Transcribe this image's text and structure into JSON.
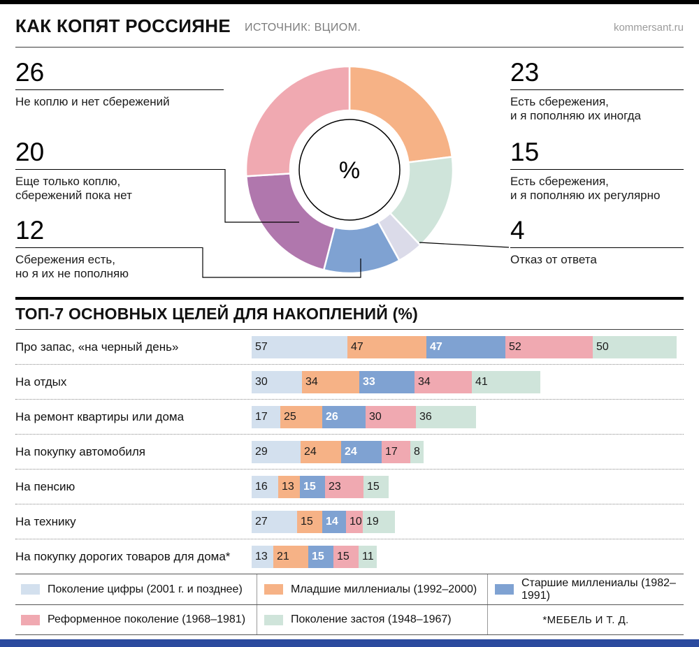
{
  "header": {
    "title": "КАК КОПЯТ РОССИЯНЕ",
    "source": "ИСТОЧНИК: ВЦИОМ.",
    "site": "kommersant.ru"
  },
  "donut": {
    "callouts": [
      {
        "value": "26",
        "label": "Не коплю и нет сбережений"
      },
      {
        "value": "20",
        "label": "Еще только коплю,\nсбережений пока нет"
      },
      {
        "value": "12",
        "label": "Сбережения есть,\nно я их не пополняю"
      },
      {
        "value": "23",
        "label": "Есть сбережения,\nи я пополняю их иногда"
      },
      {
        "value": "15",
        "label": "Есть сбережения,\nи я пополняю их регулярно"
      },
      {
        "value": "4",
        "label": "Отказ от ответа"
      }
    ]
  },
  "goals": {
    "title": "ТОП-7 ОСНОВНЫХ ЦЕЛЕЙ ДЛЯ НАКОПЛЕНИЙ (%)",
    "footnote": "*МЕБЕЛЬ И Т. Д."
  },
  "chart_data": [
    {
      "type": "pie",
      "subtype": "donut",
      "center_label": "%",
      "unit": "%",
      "labels": [
        "Есть сбережения, и я пополняю их иногда",
        "Есть сбережения, и я пополняю их регулярно",
        "Отказ от ответа",
        "Сбережения есть, но я их не пополняю",
        "Еще только коплю, сбережений пока нет",
        "Не коплю и нет сбережений"
      ],
      "values": [
        23,
        15,
        4,
        12,
        20,
        26
      ],
      "colors": [
        "#f6b286",
        "#cfe4da",
        "#dbdbe9",
        "#7fa2d2",
        "#b077ad",
        "#f0a9b1"
      ]
    },
    {
      "type": "bar",
      "stacked": true,
      "orientation": "horizontal",
      "title": "ТОП-7 ОСНОВНЫХ ЦЕЛЕЙ ДЛЯ НАКОПЛЕНИЙ (%)",
      "unit": "%",
      "categories": [
        "Про запас, «на черный день»",
        "На отдых",
        "На ремонт квартиры или дома",
        "На покупку автомобиля",
        "На пенсию",
        "На технику",
        "На покупку дорогих товаров для дома*"
      ],
      "series": [
        {
          "name": "Поколение цифры (2001 г. и позднее)",
          "color": "#d3e0ee",
          "values": [
            57,
            30,
            17,
            29,
            16,
            27,
            13
          ]
        },
        {
          "name": "Младшие миллениалы (1992–2000)",
          "color": "#f6b286",
          "values": [
            47,
            34,
            25,
            24,
            13,
            15,
            21
          ]
        },
        {
          "name": "Старшие миллениалы (1982–1991)",
          "color": "#7fa2d2",
          "values": [
            47,
            33,
            26,
            24,
            15,
            14,
            15
          ]
        },
        {
          "name": "Реформенное поколение (1968–1981)",
          "color": "#f0a9b1",
          "values": [
            52,
            34,
            30,
            17,
            23,
            10,
            15
          ]
        },
        {
          "name": "Поколение застоя (1948–1967)",
          "color": "#cfe4da",
          "values": [
            50,
            41,
            36,
            8,
            15,
            19,
            11
          ]
        }
      ]
    }
  ],
  "colors": {
    "footer_bar": "#2b4a9e"
  }
}
